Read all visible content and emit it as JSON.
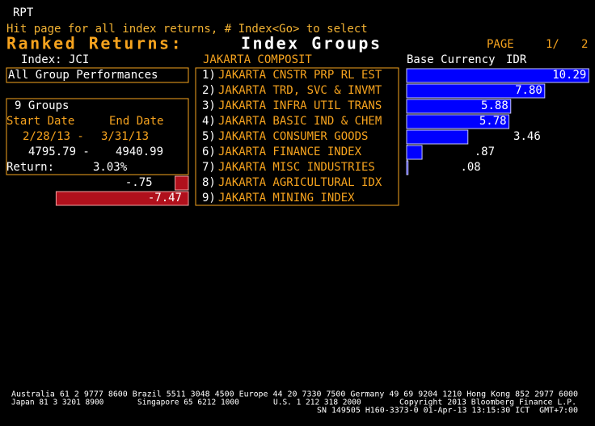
{
  "header": {
    "code": "RPT",
    "hint": "Hit page for all index returns, # Index<Go> to select",
    "title": "Ranked Returns:",
    "subtitle": "Index Groups",
    "page_label": "PAGE",
    "page": "1/",
    "pages": "2"
  },
  "index_label": "Index: JCI",
  "index_name": "JAKARTA COMPOSIT",
  "currency_label": "Base Currency",
  "currency": "IDR",
  "all_groups": "All Group Performances",
  "summary": {
    "groups": "9 Groups",
    "start_label": "Start Date",
    "end_label": "End Date",
    "start_date": "2/28/13 -",
    "end_date": "3/31/13",
    "start_value": "4795.79 -",
    "end_value": "4940.99",
    "return_label": "Return:",
    "return": "3.03%"
  },
  "groups": [
    {
      "number": "1)",
      "name": "JAKARTA CNSTR PRP RL EST",
      "return": 10.29,
      "return_label": "10.29"
    },
    {
      "number": "2)",
      "name": "JAKARTA TRD, SVC & INVMT",
      "return": 7.8,
      "return_label": "7.80"
    },
    {
      "number": "3)",
      "name": "JAKARTA INFRA UTIL TRANS",
      "return": 5.88,
      "return_label": "5.88"
    },
    {
      "number": "4)",
      "name": "JAKARTA BASIC IND & CHEM",
      "return": 5.78,
      "return_label": "5.78"
    },
    {
      "number": "5)",
      "name": "JAKARTA CONSUMER GOODS",
      "return": 3.46,
      "return_label": "3.46"
    },
    {
      "number": "6)",
      "name": "JAKARTA FINANCE INDEX",
      "return": 0.87,
      "return_label": ".87"
    },
    {
      "number": "7)",
      "name": "JAKARTA MISC INDUSTRIES",
      "return": 0.08,
      "return_label": ".08"
    },
    {
      "number": "8)",
      "name": "JAKARTA AGRICULTURAL IDX",
      "return": -0.75,
      "return_label": "-.75"
    },
    {
      "number": "9)",
      "name": "JAKARTA MINING INDEX",
      "return": -7.47,
      "return_label": "-7.47"
    }
  ],
  "footer": [
    [
      "Australia 61 2 9777 8600 Brazil 5511 3048 4500 Europe 44 20 7330 7500 Germany 49 69 9204 1210 Hong Kong 852 2977 6000"
    ],
    [
      "Japan 81 3 3201 8900",
      "Singapore 65 6212 1000",
      "U.S. 1 212 318 2000",
      "Copyright 2013 Bloomberg Finance L.P."
    ],
    [
      "SN 149505 H160-3373-0 01-Apr-13 13:15:30 ICT  GMT+7:00"
    ]
  ]
}
